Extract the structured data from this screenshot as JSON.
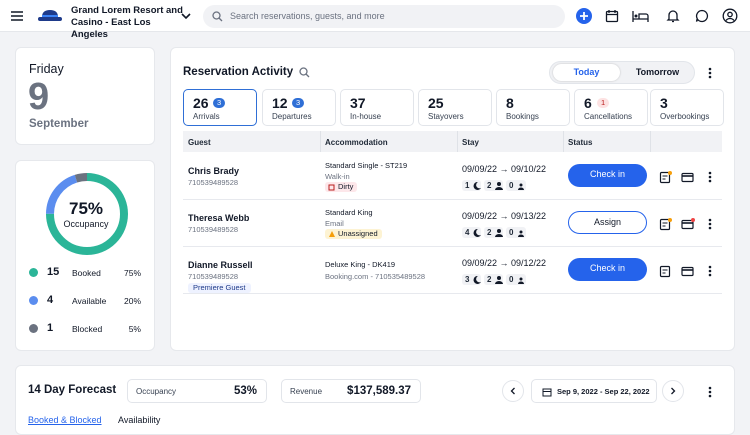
{
  "header": {
    "hotel_name": "Grand Lorem Resort and Casino - East Los Angeles",
    "search_placeholder": "Search reservations, guests, and more"
  },
  "date_card": {
    "weekday": "Friday",
    "day": 9,
    "month": "September"
  },
  "occupancy": {
    "center_value": "75%",
    "center_label": "Occupancy",
    "items": [
      {
        "count": 15,
        "name": "Booked",
        "share": 75,
        "share_label": "75%",
        "color": "#2bb598"
      },
      {
        "count": 4,
        "name": "Available",
        "share": 20,
        "share_label": "20%",
        "color": "#5b8def"
      },
      {
        "count": 1,
        "name": "Blocked",
        "share": 5,
        "share_label": "5%",
        "color": "#6b7280"
      }
    ]
  },
  "reservation_activity": {
    "title": "Reservation Activity",
    "toggle": [
      "Today",
      "Tomorrow"
    ],
    "stats": [
      {
        "count": 26,
        "badge": 3,
        "label": "Arrivals"
      },
      {
        "count": 12,
        "badge": 3,
        "label": "Departures"
      },
      {
        "count": 37,
        "label": "In-house"
      },
      {
        "count": 25,
        "label": "Stayovers"
      },
      {
        "count": 8,
        "label": "Bookings"
      },
      {
        "count": 6,
        "badge": 1,
        "label": "Cancellations"
      },
      {
        "count": 3,
        "label": "Overbookings"
      }
    ],
    "columns": [
      "Guest",
      "Accommodation",
      "Stay",
      "Status"
    ],
    "rows": [
      {
        "name": "Chris Brady",
        "id": "710539489528",
        "room": "Standard Single - ST219",
        "source": "Walk-in",
        "tag": "Dirty",
        "stay": "09/09/22 → 09/10/22",
        "nights": 1,
        "adults": 2,
        "children": 0,
        "action": "Check in"
      },
      {
        "name": "Theresa Webb",
        "id": "710539489528",
        "room": "Standard King",
        "source": "Email",
        "tag": "Unassigned",
        "stay": "09/09/22 → 09/13/22",
        "nights": 4,
        "adults": 2,
        "children": 0,
        "action": "Assign"
      },
      {
        "name": "Dianne Russell",
        "id": "710539489528",
        "guest_tag": "Premiere Guest",
        "room": "Deluxe King - DK419",
        "source": "Booking.com - 710535489528",
        "stay": "09/09/22 → 09/12/22",
        "nights": 3,
        "adults": 2,
        "children": 0,
        "action": "Check in"
      }
    ]
  },
  "forecast": {
    "title": "14 Day Forecast",
    "occupancy_label": "Occupancy",
    "occupancy_value": "53%",
    "revenue_label": "Revenue",
    "revenue_value": "$137,589.37",
    "date_range": "Sep 9, 2022 - Sep 22, 2022",
    "tabs": [
      "Booked & Blocked",
      "Availability"
    ]
  }
}
